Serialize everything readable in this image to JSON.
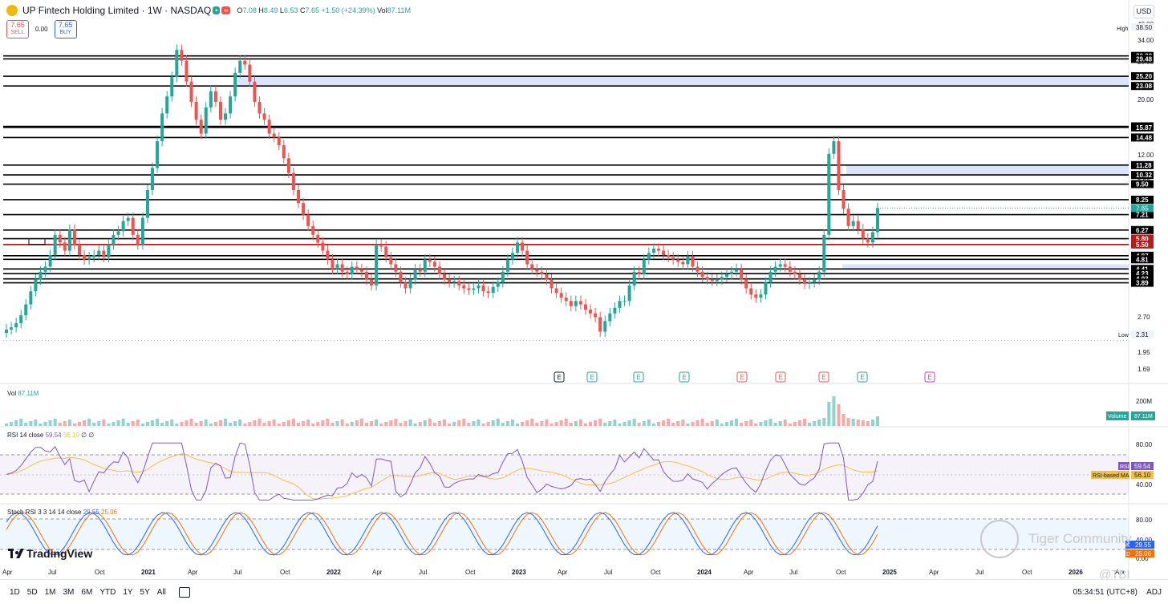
{
  "header": {
    "title": "UP Fintech Holding Limited · 1W · NASDAQ",
    "ohlc": {
      "open_label": "O",
      "open": "7.08",
      "high_label": "H",
      "high": "8.49",
      "low_label": "L",
      "low": "6.53",
      "close_label": "C",
      "close": "7.65",
      "change": "+1.50 (+24.39%)",
      "vol_label": "Vol",
      "vol": "87.11M"
    },
    "sell_price": "7.65",
    "sell_label": "SELL",
    "spread": "0.00",
    "buy_price": "7.65",
    "buy_label": "BUY"
  },
  "currency": "USD",
  "panes": {
    "volume": {
      "label": "Vol",
      "value": "87.11M",
      "axis_label": "200M",
      "tag_label": "Volume",
      "tag_value": "87.11M"
    },
    "rsi": {
      "label": "RSI 14 close",
      "value": "59.54",
      "ma_value": "56.10",
      "extra": "∅ ∅",
      "tag_rsi": "RSI",
      "tag_ma": "RSI-based MA",
      "ticks": [
        "80.00",
        "40.00"
      ]
    },
    "stoch": {
      "label": "Stoch RSI 3 3 14 14 close",
      "k": "29.55",
      "d": "25.06",
      "tag_k": "K",
      "tag_d": "D",
      "ticks": [
        "80.00",
        "40.00",
        "0.00"
      ]
    }
  },
  "earnings_markers": [
    {
      "label": "E",
      "color": "#131722"
    },
    {
      "label": "E",
      "color": "#26a69a"
    },
    {
      "label": "E",
      "color": "#26a69a"
    },
    {
      "label": "E",
      "color": "#26a69a"
    },
    {
      "label": "E",
      "color": "#ef5350"
    },
    {
      "label": "E",
      "color": "#ef5350"
    },
    {
      "label": "E",
      "color": "#ef5350"
    },
    {
      "label": "E",
      "color": "#26a69a"
    },
    {
      "label": "E",
      "color": "#c33cd1"
    }
  ],
  "bottom_bar": {
    "timeframes": [
      "1D",
      "5D",
      "1M",
      "3M",
      "6M",
      "YTD",
      "1Y",
      "5Y",
      "All"
    ],
    "time": "05:34:51 (UTC+8)",
    "adj": "ADJ"
  },
  "branding": {
    "tradingview": "TradingView",
    "watermark": "Tiger Community",
    "handle": "@TBI"
  },
  "colors": {
    "up": "#26a69a",
    "down": "#ef5350",
    "zone": "#dbe4fb",
    "rsi": "#7e57c2",
    "rsi_ma": "#f5c041",
    "stoch_k": "#2962ff",
    "stoch_d": "#ff6d00"
  },
  "chart_data": {
    "type": "candlestick",
    "title": "UP Fintech Holding Limited · 1W · NASDAQ",
    "y_scale": "log",
    "ylim": [
      1.6,
      41
    ],
    "y_ticks": [
      "40.00",
      "38.50",
      "34.00",
      "26.00",
      "20.00",
      "12.00",
      "9.50",
      "2.70",
      "1.95",
      "1.69"
    ],
    "x_ticks": [
      "Apr",
      "Jul",
      "Oct",
      "2021",
      "Apr",
      "Jul",
      "Oct",
      "2022",
      "Apr",
      "Jul",
      "Oct",
      "2023",
      "Apr",
      "Jul",
      "Oct",
      "2024",
      "Apr",
      "Jul",
      "Oct",
      "2025",
      "Apr",
      "Jul",
      "Oct",
      "2026",
      "Apr"
    ],
    "high_label": "High",
    "high_value": "38.50",
    "low_label": "Low",
    "low_value": "2.31",
    "last_price": "7.65",
    "levels": [
      "30.30",
      "29.48",
      "25.20",
      "23.08",
      "16.02",
      "15.87",
      "14.48",
      "11.28",
      "10.32",
      "9.50",
      "8.25",
      "7.21",
      "6.27",
      "5.80",
      "5.50",
      "4.97",
      "4.81",
      "4.41",
      "4.23",
      "4.03",
      "3.89"
    ],
    "zones": [
      [
        23.08,
        25.2
      ],
      [
        10.32,
        11.28
      ],
      [
        4.41,
        4.6
      ]
    ],
    "price_path": [
      2.55,
      2.6,
      2.7,
      2.9,
      3.2,
      3.6,
      4.0,
      4.3,
      4.5,
      5.0,
      6.0,
      5.6,
      5.2,
      6.3,
      5.5,
      5.0,
      4.8,
      4.9,
      5.0,
      5.2,
      4.9,
      5.5,
      6.0,
      6.2,
      6.8,
      7.0,
      6.0,
      5.5,
      7.0,
      9.0,
      11.0,
      14.0,
      18.0,
      21.0,
      25.0,
      32.0,
      29.0,
      24.0,
      20.0,
      17.0,
      15.0,
      19.0,
      22.0,
      20.0,
      17.0,
      18.0,
      21.0,
      26.0,
      29.0,
      28.0,
      24.0,
      20.0,
      18.0,
      17.0,
      15.0,
      14.5,
      13.5,
      12.0,
      10.5,
      9.0,
      8.0,
      7.2,
      6.5,
      6.0,
      5.6,
      5.2,
      4.8,
      4.4,
      4.6,
      4.3,
      4.2,
      4.5,
      4.4,
      4.3,
      4.0,
      3.8,
      5.5,
      5.4,
      4.9,
      4.6,
      4.3,
      3.9,
      3.7,
      4.0,
      4.4,
      4.3,
      4.8,
      4.7,
      4.5,
      4.2,
      4.0,
      3.9,
      3.95,
      3.8,
      3.7,
      3.65,
      3.7,
      3.8,
      3.6,
      3.55,
      3.75,
      3.9,
      4.3,
      4.8,
      5.1,
      5.6,
      5.2,
      4.6,
      4.4,
      4.3,
      4.2,
      4.0,
      3.7,
      3.55,
      3.4,
      3.3,
      3.15,
      3.3,
      3.2,
      3.05,
      2.95,
      2.85,
      2.5,
      2.75,
      2.95,
      3.1,
      3.3,
      3.3,
      3.8,
      4.3,
      4.2,
      4.8,
      5.1,
      5.3,
      5.2,
      5.0,
      4.9,
      4.8,
      4.7,
      4.6,
      4.95,
      4.5,
      4.3,
      4.1,
      4.0,
      3.95,
      4.0,
      4.1,
      4.2,
      4.3,
      4.4,
      4.0,
      3.7,
      3.5,
      3.4,
      3.5,
      3.9,
      4.3,
      4.5,
      4.6,
      4.5,
      4.3,
      4.2,
      4.0,
      3.85,
      3.9,
      4.0,
      4.3,
      6.0,
      12.5,
      14.0,
      9.0,
      7.6,
      6.5,
      6.8,
      6.3,
      5.8,
      5.6,
      6.15,
      7.65
    ],
    "price_start": "Mar 2020",
    "price_end": "Nov 2024",
    "volume_max": "200M",
    "rsi": {
      "value": 59.54,
      "ma": 56.1,
      "upper": 70,
      "lower": 30
    },
    "stoch_rsi": {
      "k": 29.55,
      "d": 25.06,
      "upper": 80,
      "lower": 20
    }
  }
}
